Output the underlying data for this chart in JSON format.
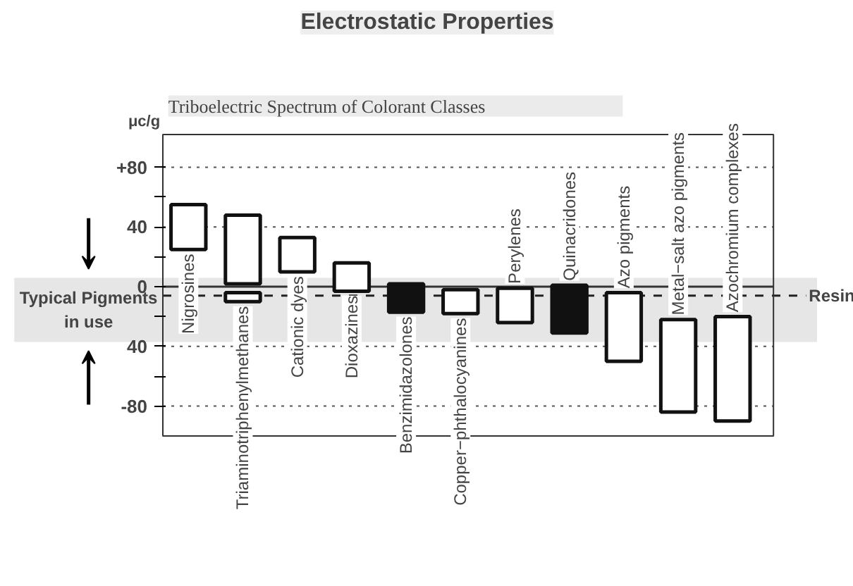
{
  "chart_data": {
    "type": "bar",
    "title": "Electrostatic Properties",
    "subtitle": "Triboelectric Spectrum of Colorant Classes",
    "ylabel": "μc/g",
    "categories": [
      "Nigrosines",
      "Triaminotriphenylmethanes",
      "Cationic dyes",
      "Dioxazines",
      "Benzimidazolones",
      "Copper−phthalocyanines",
      "Perylenes",
      "Quinacridones",
      "Azo pigments",
      "Metal−salt azo pigments",
      "Azochromium complexes"
    ],
    "series": [
      {
        "base": [
          25,
          2,
          10,
          -3,
          -17,
          -18,
          -24,
          -31,
          -50,
          -84,
          -90
        ],
        "values": [
          30,
          46,
          23,
          19,
          19,
          16,
          23,
          32,
          46,
          62,
          70
        ],
        "colors": [
          "#ffffff",
          "#ffffff",
          "#ffffff",
          "#ffffff",
          "#111111",
          "#ffffff",
          "#ffffff",
          "#111111",
          "#ffffff",
          "#ffffff",
          "#ffffff"
        ]
      },
      {
        "base": [
          null,
          -10,
          null,
          null,
          null,
          null,
          null,
          null,
          null,
          null,
          null
        ],
        "values": [
          null,
          6,
          null,
          null,
          null,
          null,
          null,
          null,
          null,
          null,
          null
        ],
        "colors": [
          "#ffffff",
          "#ffffff",
          "#ffffff",
          "#ffffff",
          "#ffffff",
          "#ffffff",
          "#ffffff",
          "#ffffff",
          "#ffffff",
          "#ffffff",
          "#ffffff"
        ]
      }
    ],
    "ylim": [
      -100,
      102
    ],
    "yticks": [
      {
        "value": -80,
        "label": "-80"
      },
      {
        "value": -60,
        "label": null
      },
      {
        "value": -40,
        "label": "40"
      },
      {
        "value": -20,
        "label": null
      },
      0,
      {
        "value": 20,
        "label": null
      },
      40,
      {
        "value": 60,
        "label": null
      },
      {
        "value": 80,
        "label": "+80"
      }
    ],
    "grid": "y",
    "tick_labels": "y",
    "ref_lines": [
      {
        "axis": "y",
        "value": 0,
        "line_style": "solid",
        "color": "#333333"
      },
      {
        "axis": "y",
        "value": -6,
        "label": "Resin",
        "line_style": "dashed",
        "color": "#222222"
      }
    ],
    "bands": [
      {
        "axis": "y",
        "from": -37,
        "to": 6,
        "label": "Typical Pigments in use",
        "color": "#e6e6e6"
      }
    ]
  }
}
